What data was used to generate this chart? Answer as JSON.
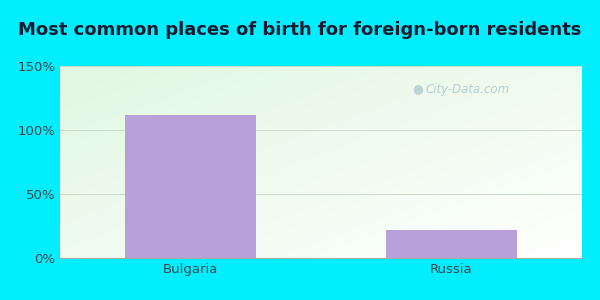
{
  "title": "Most common places of birth for foreign-born residents",
  "categories": [
    "Bulgaria",
    "Russia"
  ],
  "values": [
    112,
    22
  ],
  "bar_color": "#b8a0d8",
  "ylim": [
    0,
    150
  ],
  "yticks": [
    0,
    50,
    100,
    150
  ],
  "ytick_labels": [
    "0%",
    "50%",
    "100%",
    "150%"
  ],
  "bg_outer_color": "#00eeff",
  "grid_color": "#c8dcc8",
  "title_fontsize": 13,
  "tick_fontsize": 9.5,
  "watermark_text": "City-Data.com",
  "watermark_color": "#aac8cc",
  "title_color": "#1a1a2e"
}
